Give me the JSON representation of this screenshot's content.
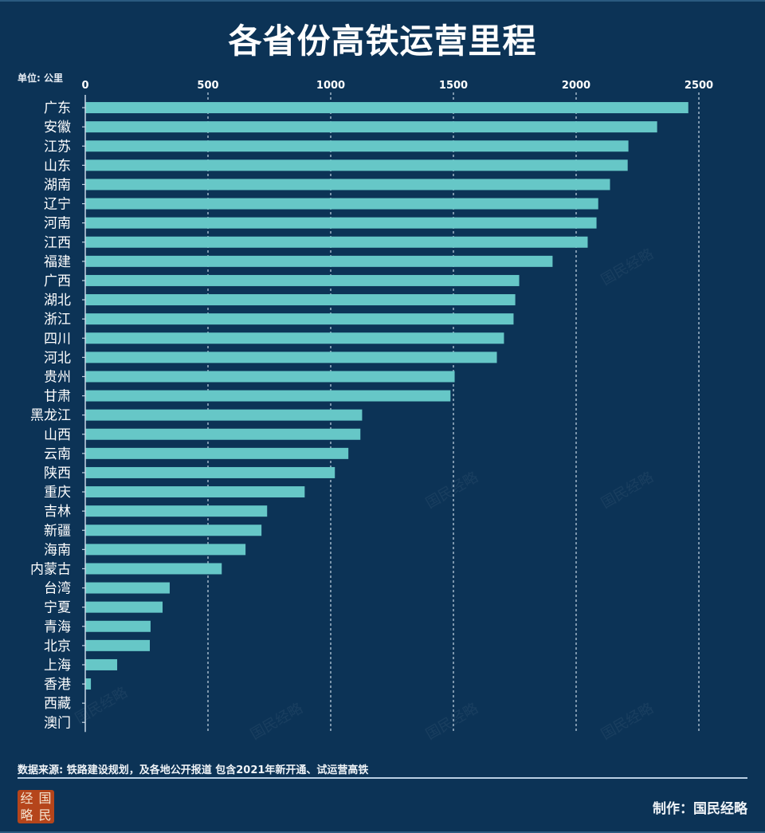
{
  "title": "各省份高铁运营里程",
  "unit_label": "单位: 公里",
  "footer": {
    "source_note": "数据来源: 铁路建设规划，及各地公开报道 包含2021年新开通、试运营高铁",
    "maker": "制作：国民经略",
    "logo_text": [
      "经",
      "国",
      "略",
      "民"
    ],
    "watermark_text": "国民经略"
  },
  "colors": {
    "background": "#0c3356",
    "bar": "#66c7c7",
    "grid": "#c8d8e6"
  },
  "chart_data": {
    "type": "bar",
    "orientation": "horizontal",
    "title": "各省份高铁运营里程",
    "xlabel": "单位: 公里",
    "ylabel": "",
    "xlim": [
      0,
      2500
    ],
    "xticks": [
      0,
      500,
      1000,
      1500,
      2000,
      2500
    ],
    "xtick_labels": [
      "0",
      "500",
      "1000",
      "1500",
      "2000",
      "2500"
    ],
    "grid": "vertical dashed",
    "legend": "none",
    "categories": [
      "广东",
      "安徽",
      "江苏",
      "山东",
      "湖南",
      "辽宁",
      "河南",
      "江西",
      "福建",
      "广西",
      "湖北",
      "浙江",
      "四川",
      "河北",
      "贵州",
      "甘肃",
      "黑龙江",
      "山西",
      "云南",
      "陕西",
      "重庆",
      "吉林",
      "新疆",
      "海南",
      "内蒙古",
      "台湾",
      "宁夏",
      "青海",
      "北京",
      "上海",
      "香港",
      "西藏",
      "澳门"
    ],
    "values": [
      2457,
      2330,
      2213,
      2210,
      2138,
      2090,
      2083,
      2047,
      1904,
      1768,
      1752,
      1745,
      1706,
      1677,
      1505,
      1488,
      1128,
      1121,
      1072,
      1017,
      894,
      741,
      718,
      653,
      556,
      344,
      315,
      266,
      263,
      130,
      23,
      0,
      0
    ]
  }
}
